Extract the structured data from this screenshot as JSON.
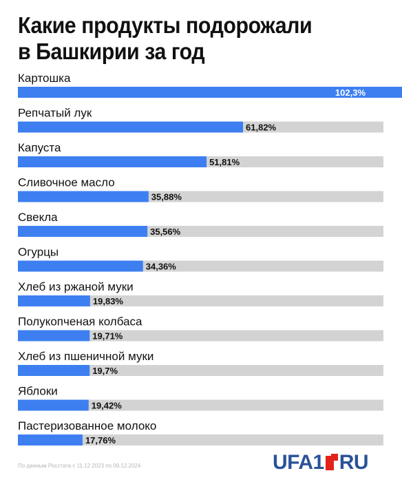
{
  "title_lines": [
    "Какие продукты подорожали",
    "в Башкирии за год"
  ],
  "footer": {
    "source": "По данным Росстата с 11.12.2023 по 09.12.2024",
    "logo_left": "UFA1",
    "logo_right": "RU"
  },
  "colors": {
    "bar": "#3d7ff0",
    "track": "#d3d3d3",
    "value_text_inside": "#ffffff",
    "value_text_outside": "#111111"
  },
  "chart_data": {
    "type": "bar",
    "orientation": "horizontal",
    "title": "Какие продукты подорожали в Башкирии за год",
    "unit": "%",
    "xlim": [
      0,
      90
    ],
    "categories": [
      "Картошка",
      "Репчатый лук",
      "Капуста",
      "Сливочное масло",
      "Свекла",
      "Огурцы",
      "Хлеб из ржаной муки",
      "Полукопченая колбаса",
      "Хлеб из пшеничной муки",
      "Яблоки",
      "Пастеризованное молоко"
    ],
    "values": [
      102.3,
      61.82,
      51.81,
      35.88,
      35.56,
      34.36,
      19.83,
      19.71,
      19.7,
      19.42,
      17.76
    ],
    "value_labels": [
      "102,3%",
      "61,82%",
      "51,81%",
      "35,88%",
      "35,56%",
      "34,36%",
      "19,83%",
      "19,71%",
      "19,7%",
      "19,42%",
      "17,76%"
    ]
  }
}
